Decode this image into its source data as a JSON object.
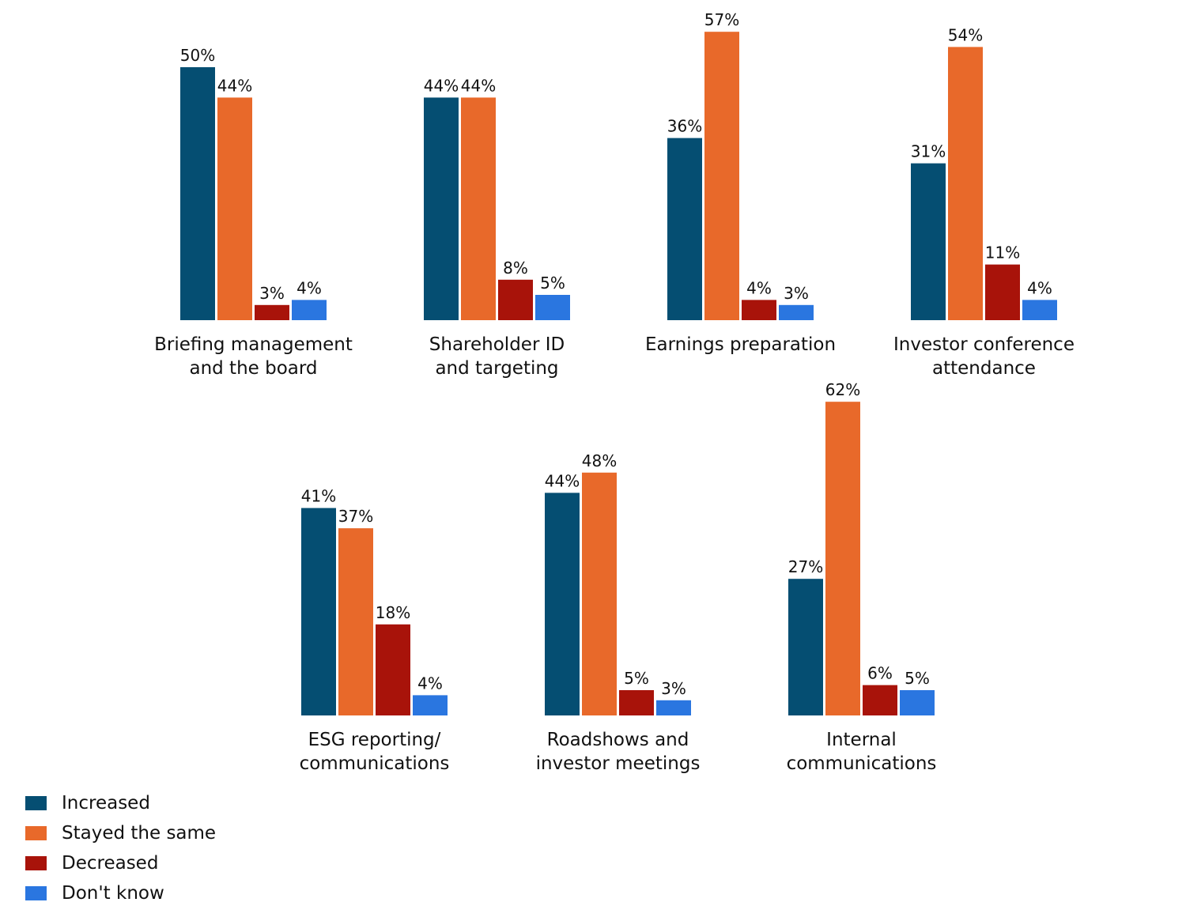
{
  "chart_data": {
    "type": "bar",
    "grid": false,
    "legend_position": "bottom-left",
    "series": [
      {
        "name": "Increased",
        "color": "#054e72"
      },
      {
        "name": "Stayed the same",
        "color": "#e8692a"
      },
      {
        "name": "Decreased",
        "color": "#a8130a"
      },
      {
        "name": "Don't know",
        "color": "#2a76e0"
      }
    ],
    "panels": [
      {
        "category": [
          "Briefing management",
          "and the board"
        ],
        "values": [
          50,
          44,
          3,
          4
        ],
        "labels": [
          "50%",
          "44%",
          "3%",
          "4%"
        ]
      },
      {
        "category": [
          "Shareholder ID",
          "and targeting"
        ],
        "values": [
          44,
          44,
          8,
          5
        ],
        "labels": [
          "44%",
          "44%",
          "8%",
          "5%"
        ]
      },
      {
        "category": [
          "Earnings preparation"
        ],
        "values": [
          36,
          57,
          4,
          3
        ],
        "labels": [
          "36%",
          "57%",
          "4%",
          "3%"
        ]
      },
      {
        "category": [
          "Investor conference",
          "attendance"
        ],
        "values": [
          31,
          54,
          11,
          4
        ],
        "labels": [
          "31%",
          "54%",
          "11%",
          "4%"
        ]
      },
      {
        "category": [
          "ESG reporting/",
          "communications"
        ],
        "values": [
          41,
          37,
          18,
          4
        ],
        "labels": [
          "41%",
          "37%",
          "18%",
          "4%"
        ]
      },
      {
        "category": [
          "Roadshows and",
          "investor meetings"
        ],
        "values": [
          44,
          48,
          5,
          3
        ],
        "labels": [
          "44%",
          "48%",
          "5%",
          "3%"
        ]
      },
      {
        "category": [
          "Internal",
          "communications"
        ],
        "values": [
          27,
          62,
          6,
          5
        ],
        "labels": [
          "27%",
          "62%",
          "6%",
          "5%"
        ]
      }
    ]
  }
}
